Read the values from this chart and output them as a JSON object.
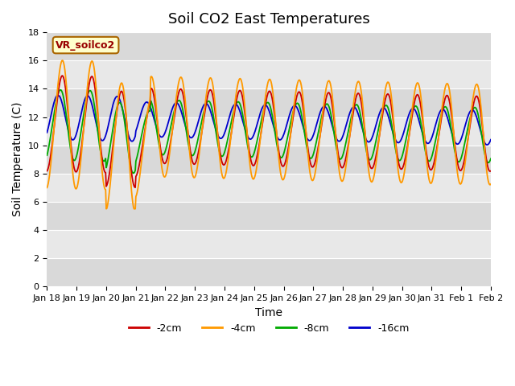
{
  "title": "Soil CO2 East Temperatures",
  "xlabel": "Time",
  "ylabel": "Soil Temperature (C)",
  "ylim": [
    0,
    18
  ],
  "yticks": [
    0,
    2,
    4,
    6,
    8,
    10,
    12,
    14,
    16,
    18
  ],
  "xtick_labels": [
    "Jan 18",
    "Jan 19",
    "Jan 20",
    "Jan 21",
    "Jan 22",
    "Jan 23",
    "Jan 24",
    "Jan 25",
    "Jan 26",
    "Jan 27",
    "Jan 28",
    "Jan 29",
    "Jan 30",
    "Jan 31",
    "Feb 1",
    "Feb 2"
  ],
  "legend_label": "VR_soilco2",
  "line_labels": [
    "-2cm",
    "-4cm",
    "-8cm",
    "-16cm"
  ],
  "line_colors": [
    "#cc0000",
    "#ff9900",
    "#00aa00",
    "#0000cc"
  ],
  "bg_color": "#ffffff",
  "plot_bg_color": "#e8e8e8",
  "band_color": "#d0d0d0",
  "grid_color": "#ffffff",
  "title_fontsize": 13,
  "axis_fontsize": 10,
  "tick_fontsize": 8,
  "legend_box_color": "#ffffcc",
  "legend_box_edge": "#aa6600"
}
